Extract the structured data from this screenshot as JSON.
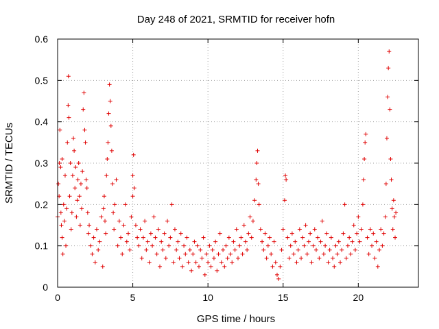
{
  "chart_data": {
    "type": "scatter",
    "title": "Day 248 of 2021, SRMTID for receiver hofn",
    "xlabel": "GPS time / hours",
    "ylabel": "SRMTID / TECUs",
    "xlim": [
      0,
      24
    ],
    "ylim": [
      0,
      0.6
    ],
    "x_ticks": [
      0,
      5,
      10,
      15,
      20
    ],
    "y_ticks": [
      0,
      0.1,
      0.2,
      0.3,
      0.4,
      0.5,
      0.6
    ],
    "x_tick_labels": [
      "0",
      "5",
      "10",
      "15",
      "20"
    ],
    "y_tick_labels": [
      "0",
      "0.1",
      "0.2",
      "0.3",
      "0.4",
      "0.5",
      "0.6"
    ],
    "grid": true,
    "marker": "+",
    "color": "#e00000",
    "series": [
      {
        "name": "SRMTID",
        "points": [
          [
            0.0,
            0.17
          ],
          [
            0.05,
            0.25
          ],
          [
            0.1,
            0.22
          ],
          [
            0.12,
            0.3
          ],
          [
            0.15,
            0.38
          ],
          [
            0.2,
            0.29
          ],
          [
            0.22,
            0.18
          ],
          [
            0.25,
            0.15
          ],
          [
            0.3,
            0.12
          ],
          [
            0.3,
            0.31
          ],
          [
            0.35,
            0.08
          ],
          [
            0.4,
            0.2
          ],
          [
            0.45,
            0.16
          ],
          [
            0.5,
            0.27
          ],
          [
            0.55,
            0.1
          ],
          [
            0.6,
            0.19
          ],
          [
            0.65,
            0.35
          ],
          [
            0.7,
            0.44
          ],
          [
            0.72,
            0.51
          ],
          [
            0.75,
            0.41
          ],
          [
            0.8,
            0.22
          ],
          [
            0.85,
            0.3
          ],
          [
            0.9,
            0.14
          ],
          [
            0.95,
            0.18
          ],
          [
            1.0,
            0.27
          ],
          [
            1.05,
            0.36
          ],
          [
            1.1,
            0.33
          ],
          [
            1.15,
            0.24
          ],
          [
            1.2,
            0.29
          ],
          [
            1.25,
            0.17
          ],
          [
            1.3,
            0.21
          ],
          [
            1.35,
            0.26
          ],
          [
            1.4,
            0.3
          ],
          [
            1.45,
            0.22
          ],
          [
            1.5,
            0.15
          ],
          [
            1.55,
            0.25
          ],
          [
            1.6,
            0.19
          ],
          [
            1.65,
            0.28
          ],
          [
            1.7,
            0.43
          ],
          [
            1.75,
            0.47
          ],
          [
            1.8,
            0.38
          ],
          [
            1.85,
            0.35
          ],
          [
            1.9,
            0.26
          ],
          [
            1.95,
            0.24
          ],
          [
            2.0,
            0.18
          ],
          [
            2.05,
            0.13
          ],
          [
            2.1,
            0.15
          ],
          [
            2.2,
            0.1
          ],
          [
            2.3,
            0.08
          ],
          [
            2.4,
            0.12
          ],
          [
            2.5,
            0.06
          ],
          [
            2.6,
            0.14
          ],
          [
            2.7,
            0.09
          ],
          [
            2.8,
            0.11
          ],
          [
            2.9,
            0.17
          ],
          [
            3.0,
            0.05
          ],
          [
            3.05,
            0.19
          ],
          [
            3.1,
            0.22
          ],
          [
            3.15,
            0.16
          ],
          [
            3.2,
            0.13
          ],
          [
            3.25,
            0.27
          ],
          [
            3.3,
            0.31
          ],
          [
            3.35,
            0.35
          ],
          [
            3.4,
            0.42
          ],
          [
            3.45,
            0.49
          ],
          [
            3.5,
            0.45
          ],
          [
            3.55,
            0.39
          ],
          [
            3.6,
            0.33
          ],
          [
            3.65,
            0.25
          ],
          [
            3.7,
            0.18
          ],
          [
            3.75,
            0.14
          ],
          [
            3.8,
            0.2
          ],
          [
            3.9,
            0.26
          ],
          [
            4.0,
            0.1
          ],
          [
            4.1,
            0.16
          ],
          [
            4.2,
            0.12
          ],
          [
            4.3,
            0.08
          ],
          [
            4.4,
            0.15
          ],
          [
            4.5,
            0.2
          ],
          [
            4.6,
            0.11
          ],
          [
            4.7,
            0.13
          ],
          [
            4.8,
            0.09
          ],
          [
            4.9,
            0.17
          ],
          [
            5.0,
            0.22
          ],
          [
            5.0,
            0.27
          ],
          [
            5.05,
            0.32
          ],
          [
            5.1,
            0.24
          ],
          [
            5.2,
            0.15
          ],
          [
            5.3,
            0.12
          ],
          [
            5.4,
            0.1
          ],
          [
            5.5,
            0.14
          ],
          [
            5.6,
            0.07
          ],
          [
            5.7,
            0.12
          ],
          [
            5.8,
            0.16
          ],
          [
            5.9,
            0.09
          ],
          [
            6.0,
            0.11
          ],
          [
            6.1,
            0.06
          ],
          [
            6.2,
            0.13
          ],
          [
            6.3,
            0.1
          ],
          [
            6.4,
            0.17
          ],
          [
            6.5,
            0.12
          ],
          [
            6.6,
            0.08
          ],
          [
            6.7,
            0.14
          ],
          [
            6.8,
            0.05
          ],
          [
            6.9,
            0.11
          ],
          [
            7.0,
            0.09
          ],
          [
            7.1,
            0.13
          ],
          [
            7.2,
            0.07
          ],
          [
            7.3,
            0.16
          ],
          [
            7.4,
            0.1
          ],
          [
            7.5,
            0.12
          ],
          [
            7.6,
            0.2
          ],
          [
            7.7,
            0.06
          ],
          [
            7.8,
            0.14
          ],
          [
            7.9,
            0.09
          ],
          [
            8.0,
            0.11
          ],
          [
            8.1,
            0.07
          ],
          [
            8.2,
            0.13
          ],
          [
            8.3,
            0.05
          ],
          [
            8.4,
            0.1
          ],
          [
            8.5,
            0.08
          ],
          [
            8.6,
            0.12
          ],
          [
            8.7,
            0.06
          ],
          [
            8.8,
            0.09
          ],
          [
            8.9,
            0.04
          ],
          [
            9.0,
            0.08
          ],
          [
            9.1,
            0.11
          ],
          [
            9.2,
            0.06
          ],
          [
            9.3,
            0.1
          ],
          [
            9.4,
            0.05
          ],
          [
            9.5,
            0.09
          ],
          [
            9.6,
            0.07
          ],
          [
            9.7,
            0.12
          ],
          [
            9.8,
            0.03
          ],
          [
            9.9,
            0.08
          ],
          [
            10.0,
            0.06
          ],
          [
            10.1,
            0.1
          ],
          [
            10.2,
            0.05
          ],
          [
            10.3,
            0.09
          ],
          [
            10.4,
            0.07
          ],
          [
            10.5,
            0.11
          ],
          [
            10.6,
            0.04
          ],
          [
            10.7,
            0.08
          ],
          [
            10.8,
            0.13
          ],
          [
            10.9,
            0.06
          ],
          [
            11.0,
            0.09
          ],
          [
            11.1,
            0.05
          ],
          [
            11.2,
            0.1
          ],
          [
            11.3,
            0.07
          ],
          [
            11.4,
            0.12
          ],
          [
            11.5,
            0.08
          ],
          [
            11.6,
            0.06
          ],
          [
            11.7,
            0.11
          ],
          [
            11.8,
            0.09
          ],
          [
            11.9,
            0.14
          ],
          [
            12.0,
            0.07
          ],
          [
            12.1,
            0.1
          ],
          [
            12.2,
            0.12
          ],
          [
            12.3,
            0.08
          ],
          [
            12.4,
            0.15
          ],
          [
            12.5,
            0.11
          ],
          [
            12.6,
            0.09
          ],
          [
            12.7,
            0.13
          ],
          [
            12.8,
            0.17
          ],
          [
            12.9,
            0.12
          ],
          [
            13.0,
            0.16
          ],
          [
            13.1,
            0.21
          ],
          [
            13.2,
            0.26
          ],
          [
            13.25,
            0.3
          ],
          [
            13.3,
            0.33
          ],
          [
            13.35,
            0.25
          ],
          [
            13.4,
            0.2
          ],
          [
            13.5,
            0.14
          ],
          [
            13.6,
            0.11
          ],
          [
            13.7,
            0.09
          ],
          [
            13.8,
            0.13
          ],
          [
            13.9,
            0.07
          ],
          [
            14.0,
            0.1
          ],
          [
            14.1,
            0.12
          ],
          [
            14.2,
            0.08
          ],
          [
            14.3,
            0.05
          ],
          [
            14.4,
            0.11
          ],
          [
            14.5,
            0.06
          ],
          [
            14.6,
            0.03
          ],
          [
            14.7,
            0.02
          ],
          [
            14.8,
            0.05
          ],
          [
            14.9,
            0.09
          ],
          [
            15.0,
            0.14
          ],
          [
            15.1,
            0.21
          ],
          [
            15.15,
            0.27
          ],
          [
            15.2,
            0.26
          ],
          [
            15.3,
            0.12
          ],
          [
            15.4,
            0.07
          ],
          [
            15.5,
            0.1
          ],
          [
            15.6,
            0.13
          ],
          [
            15.7,
            0.08
          ],
          [
            15.8,
            0.11
          ],
          [
            15.9,
            0.06
          ],
          [
            16.0,
            0.09
          ],
          [
            16.1,
            0.14
          ],
          [
            16.2,
            0.07
          ],
          [
            16.3,
            0.12
          ],
          [
            16.4,
            0.1
          ],
          [
            16.5,
            0.15
          ],
          [
            16.6,
            0.08
          ],
          [
            16.7,
            0.11
          ],
          [
            16.8,
            0.13
          ],
          [
            16.9,
            0.06
          ],
          [
            17.0,
            0.1
          ],
          [
            17.1,
            0.14
          ],
          [
            17.2,
            0.09
          ],
          [
            17.3,
            0.12
          ],
          [
            17.4,
            0.07
          ],
          [
            17.5,
            0.11
          ],
          [
            17.6,
            0.16
          ],
          [
            17.7,
            0.08
          ],
          [
            17.8,
            0.1
          ],
          [
            17.9,
            0.13
          ],
          [
            18.0,
            0.06
          ],
          [
            18.1,
            0.09
          ],
          [
            18.2,
            0.12
          ],
          [
            18.3,
            0.07
          ],
          [
            18.4,
            0.05
          ],
          [
            18.5,
            0.1
          ],
          [
            18.6,
            0.08
          ],
          [
            18.7,
            0.11
          ],
          [
            18.8,
            0.06
          ],
          [
            18.9,
            0.09
          ],
          [
            19.0,
            0.13
          ],
          [
            19.1,
            0.2
          ],
          [
            19.2,
            0.07
          ],
          [
            19.3,
            0.1
          ],
          [
            19.4,
            0.12
          ],
          [
            19.5,
            0.08
          ],
          [
            19.6,
            0.11
          ],
          [
            19.7,
            0.15
          ],
          [
            19.8,
            0.09
          ],
          [
            19.9,
            0.13
          ],
          [
            20.0,
            0.17
          ],
          [
            20.1,
            0.11
          ],
          [
            20.2,
            0.14
          ],
          [
            20.3,
            0.2
          ],
          [
            20.35,
            0.26
          ],
          [
            20.4,
            0.31
          ],
          [
            20.45,
            0.35
          ],
          [
            20.5,
            0.37
          ],
          [
            20.6,
            0.12
          ],
          [
            20.7,
            0.08
          ],
          [
            20.8,
            0.14
          ],
          [
            20.9,
            0.1
          ],
          [
            21.0,
            0.13
          ],
          [
            21.1,
            0.07
          ],
          [
            21.2,
            0.11
          ],
          [
            21.3,
            0.05
          ],
          [
            21.4,
            0.09
          ],
          [
            21.5,
            0.14
          ],
          [
            21.6,
            0.1
          ],
          [
            21.7,
            0.13
          ],
          [
            21.8,
            0.17
          ],
          [
            21.85,
            0.25
          ],
          [
            21.9,
            0.36
          ],
          [
            21.95,
            0.46
          ],
          [
            22.0,
            0.53
          ],
          [
            22.05,
            0.57
          ],
          [
            22.1,
            0.43
          ],
          [
            22.15,
            0.31
          ],
          [
            22.2,
            0.26
          ],
          [
            22.25,
            0.19
          ],
          [
            22.3,
            0.14
          ],
          [
            22.35,
            0.21
          ],
          [
            22.4,
            0.17
          ],
          [
            22.45,
            0.12
          ],
          [
            22.5,
            0.18
          ]
        ]
      }
    ]
  }
}
